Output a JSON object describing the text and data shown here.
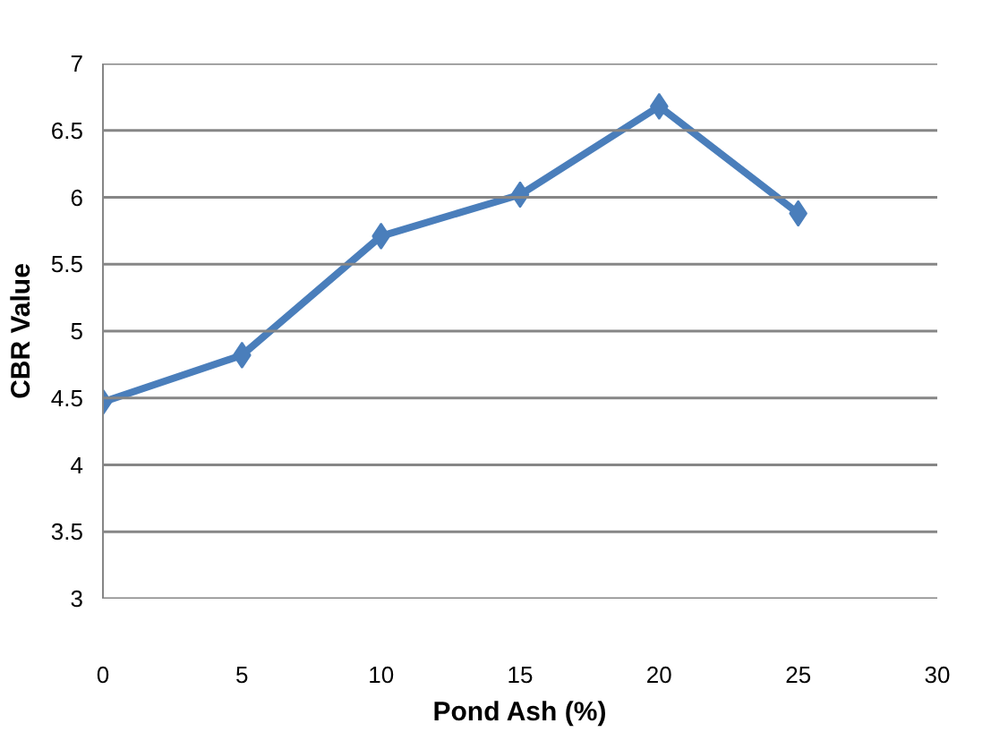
{
  "chart_data": {
    "type": "line",
    "xlabel": "Pond Ash (%)",
    "ylabel": "CBR Value",
    "x": [
      0,
      5,
      10,
      15,
      20,
      25
    ],
    "series": [
      {
        "color": "#4a7ebb",
        "values": [
          4.47,
          4.82,
          5.71,
          6.02,
          6.68,
          5.88
        ]
      }
    ],
    "xlim": [
      0,
      30
    ],
    "xticks": [
      0,
      5,
      10,
      15,
      20,
      25,
      30
    ],
    "ylim": [
      3,
      7
    ],
    "yticks": [
      3,
      3.5,
      4,
      4.5,
      5,
      5.5,
      6,
      6.5,
      7
    ],
    "grid": "y",
    "marker": "diamond",
    "line_style": "solid"
  }
}
